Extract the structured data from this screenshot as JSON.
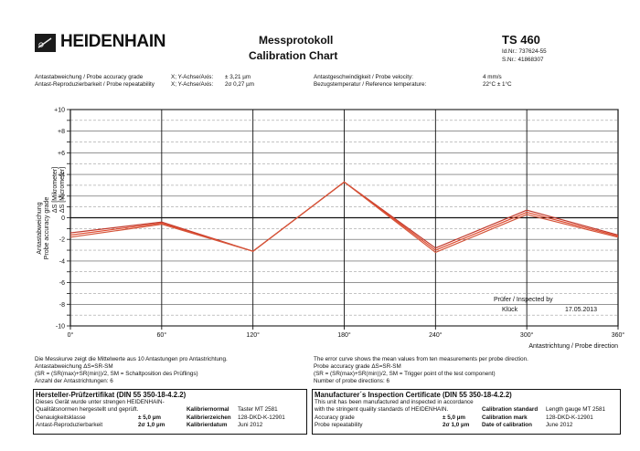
{
  "header": {
    "brand": "HEIDENHAIN",
    "title_de": "Messprotokoll",
    "title_en": "Calibration Chart",
    "model": "TS 460",
    "id_line": "Id.Nr.: 737624-55",
    "sn_line": "S.Nr.: 41868307"
  },
  "specs_left": [
    {
      "label": "Antastabweichung / Probe accuracy grade",
      "axis": "X; Y-Achse/Axis:",
      "value": "±  3,21 µm"
    },
    {
      "label": "Antast-Reproduzierbarkeit / Probe repeatability",
      "axis": "X; Y-Achse/Axis:",
      "value": "2σ 0,27 µm"
    }
  ],
  "specs_right": [
    {
      "label": "Antastgeschwindigkeit / Probe velocity:",
      "value": "4 mm/s"
    },
    {
      "label": "Bezugstemperatur / Reference temperature:",
      "value": "22°C ± 1°C"
    }
  ],
  "chart_data": {
    "type": "line",
    "x": [
      0,
      60,
      120,
      180,
      240,
      300,
      360
    ],
    "x_tick_labels": [
      "0°",
      "60°",
      "120°",
      "180°",
      "240°",
      "300°",
      "360°"
    ],
    "y_tick_labels": [
      "+10",
      "+8",
      "+6",
      "+4",
      "+2",
      "0",
      "-2",
      "-4",
      "-6",
      "-8",
      "-10"
    ],
    "ylim": [
      -10,
      10
    ],
    "xlim": [
      0,
      360
    ],
    "xlabel": "Antastrichtung / Probe direction",
    "ylabel_outer": "Antastabweichung",
    "ylabel_mid": "Probe accuracy grade",
    "ylabel_right_1": "ΔS [Mikrometer]",
    "ylabel_right_2": "ΔS [Micrometer]",
    "series": [
      {
        "values": [
          -1.4,
          -0.4,
          -3.1,
          3.3,
          -2.8,
          0.7,
          -1.6
        ],
        "color": "#c0392b"
      },
      {
        "values": [
          -1.6,
          -0.5,
          -3.1,
          3.3,
          -3.0,
          0.5,
          -1.7
        ],
        "color": "#e0482c"
      },
      {
        "values": [
          -1.8,
          -0.6,
          -3.1,
          3.3,
          -3.2,
          0.3,
          -1.8
        ],
        "color": "#d4553a"
      }
    ],
    "annotation": {
      "line1": "Prüfer / Inspected by",
      "name": "Klück",
      "date": "17.05.2013"
    }
  },
  "notes": {
    "de_1": "Die Messkurve zeigt die Mittelwerte aus 10 Antastungen pro Antastrichtung.",
    "de_2": "Antastabweichung  ΔS=SR-SM",
    "de_3": "(SR = (SR(max)+SR(min))/2,  SM = Schaltposition des Prüflings)",
    "de_4": "Anzahl der Antastrichtungen:  6",
    "en_1": "The error curve shows the mean values from ten measurements per probe direction.",
    "en_2": "Probe accuracy grade  ΔS=SR-SM",
    "en_3": "(SR = (SR(max)+SR(min))/2,  SM = Trigger point of the test component)",
    "en_4": "Number of probe directions:  6"
  },
  "cert_de": {
    "title": "Hersteller-Prüfzertifikat (DIN 55 350-18-4.2.2)",
    "l1": "Dieses Gerät wurde unter strengen HEIDENHAIN-",
    "l2": "Qualitätsnormen hergestellt und geprüft.",
    "r1_label": "Genauigkeitsklasse",
    "r1_value": "±  5,0 µm",
    "r2_label": "Antast-Reproduzierbarkeit",
    "r2_value": "2σ 1,0 µm",
    "k1_label": "Kalibriernormal",
    "k1_value": "Taster MT 2581",
    "k2_label": "Kalibrierzeichen",
    "k2_value": "128-DKD-K-12901",
    "k3_label": "Kalibrierdatum",
    "k3_value": "Juni 2012"
  },
  "cert_en": {
    "title": "Manufacturer´s Inspection Certificate (DIN 55 350-18-4.2.2)",
    "l1": "This unit has been manufactured and inspected in accordance",
    "l2": "with the stringent quality standards of HEIDENHAIN.",
    "r1_label": "Accuracy grade",
    "r1_value": "±  5,0 µm",
    "r2_label": "Probe repeatability",
    "r2_value": "2σ 1,0 µm",
    "k1_label": "Calibration standard",
    "k1_value": "Length gauge MT 2581",
    "k2_label": "Calibration mark",
    "k2_value": "128-DKD-K-12901",
    "k3_label": "Date of calibration",
    "k3_value": "June 2012"
  }
}
